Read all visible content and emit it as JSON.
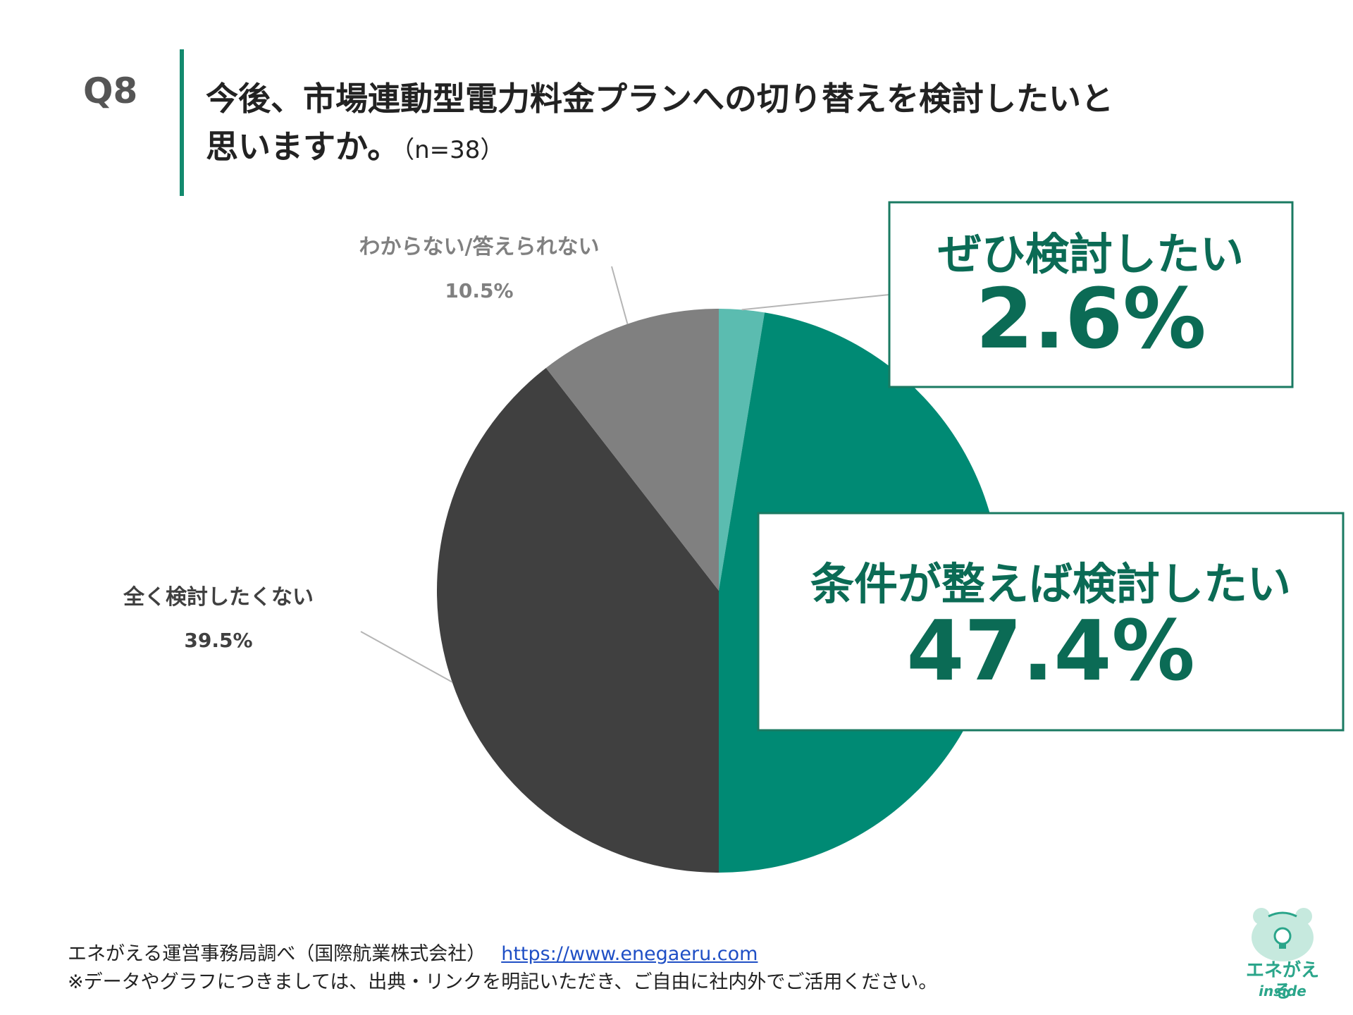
{
  "question": {
    "label": "Q8",
    "title_line1": "今後、市場連動型電力料金プランへの切り替えを検討したいと",
    "title_line2": "思いますか。",
    "sample": "（n=38）"
  },
  "chart_data": {
    "type": "pie",
    "title": "",
    "start_angle": 0,
    "direction": "clockwise",
    "slices": [
      {
        "name": "ぜひ検討したい",
        "value": 2.6,
        "label": "2.6%",
        "color": "#5bbcb0"
      },
      {
        "name": "条件が整えば検討したい",
        "value": 47.4,
        "label": "47.4%",
        "color": "#008a74"
      },
      {
        "name": "全く検討したくない",
        "value": 39.5,
        "label": "39.5%",
        "color": "#404040"
      },
      {
        "name": "わからない/答えられない",
        "value": 10.5,
        "label": "10.5%",
        "color": "#808080"
      }
    ]
  },
  "colors": {
    "accent": "#138a6e",
    "callout_text": "#0b6b55",
    "callout_border": "#1a7a62"
  },
  "footer": {
    "source": "エネがえる運営事務局調べ（国際航業株式会社）",
    "url": "https://www.enegaeru.com",
    "note": "※データやグラフにつきましては、出典・リンクを明記いただき、ご自由に社内外でご活用ください。"
  },
  "logo": {
    "text": "エネがえる",
    "sub": "inside",
    "icon": "frog-lightbulb-icon"
  }
}
